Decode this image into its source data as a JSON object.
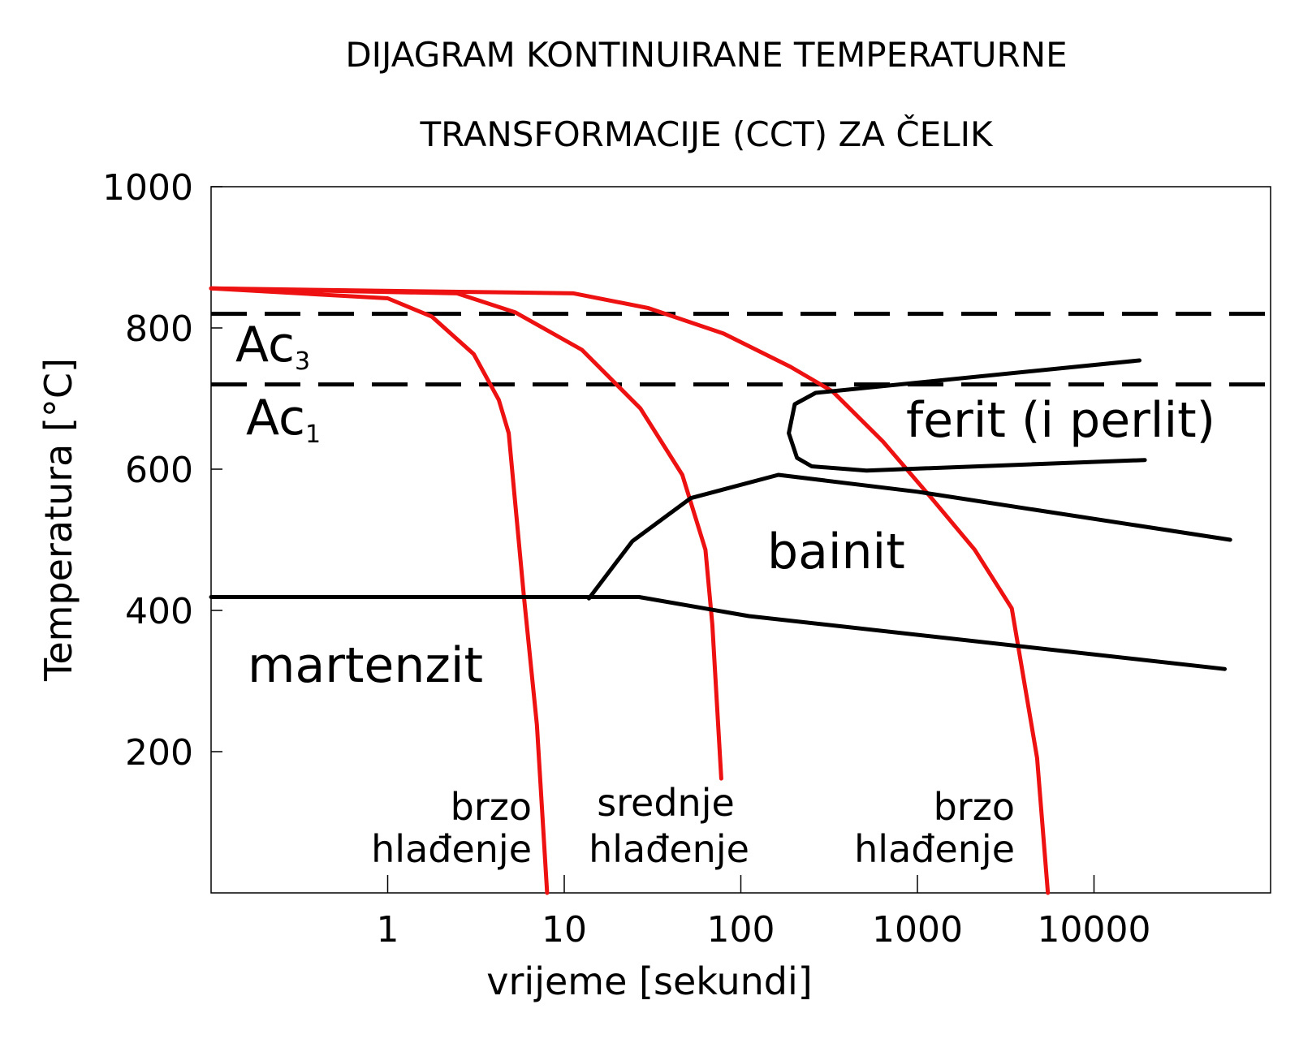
{
  "chart_data": {
    "type": "line",
    "title": [
      "DIJAGRAM KONTINUIRANE TEMPERATURNE",
      "TRANSFORMACIJE (CCT) ZA ČELIK"
    ],
    "x_label": "vrijeme [sekundi]",
    "y_label": "Temperatura   [°C]",
    "xscale": "log",
    "xlim": [
      0.1,
      100000
    ],
    "xticks": [
      1,
      10,
      100,
      1000,
      10000
    ],
    "ylim": [
      0,
      1000
    ],
    "yticks": [
      200,
      400,
      600,
      800,
      1000
    ],
    "grid": false,
    "hlines": [
      820,
      720
    ],
    "hline_labels": [
      {
        "text": "Ac",
        "sub": "3"
      },
      {
        "text": "Ac",
        "sub": "1"
      }
    ],
    "region_labels": [
      "ferit (i perlit)",
      "bainit",
      "martenzit"
    ],
    "curve_labels": [
      [
        "brzo",
        "hlađenje"
      ],
      [
        "srednje",
        "hlađenje"
      ],
      [
        "brzo",
        "hlađenje"
      ]
    ],
    "series": [
      {
        "color": "#ee1111",
        "x": [
          0.1,
          1,
          1.78,
          3.07,
          4.26,
          4.85,
          5.9,
          7,
          8
        ],
        "y": [
          856,
          842,
          816,
          763,
          698,
          651,
          421,
          238,
          0
        ]
      },
      {
        "color": "#ee1111",
        "x": [
          0.1,
          2.47,
          5.29,
          12.6,
          27,
          46.6,
          63,
          69,
          77.5
        ],
        "y": [
          856,
          849,
          822,
          769,
          686,
          592,
          486,
          380,
          162
        ]
      },
      {
        "color": "#ee1111",
        "x": [
          0.1,
          11.3,
          30,
          80,
          191,
          331,
          639,
          1220,
          2110,
          3420,
          4760,
          5480
        ],
        "y": [
          856,
          849,
          828,
          792,
          745,
          710,
          639,
          557,
          486,
          403,
          191,
          0
        ]
      },
      {
        "color": "#000000",
        "x": [
          0.1,
          26.5,
          111,
          55000
        ],
        "y": [
          419,
          419,
          392,
          317
        ]
      },
      {
        "color": "#000000",
        "x": [
          13.8,
          24.3,
          52,
          163,
          1000,
          59000
        ],
        "y": [
          417,
          498,
          559,
          592,
          568,
          500
        ]
      },
      {
        "color": "#000000",
        "x": [
          18100,
          265,
          202,
          187,
          208,
          252,
          515,
          19400
        ],
        "y": [
          754,
          708,
          692,
          651,
          616,
          604,
          598,
          613
        ]
      }
    ]
  }
}
